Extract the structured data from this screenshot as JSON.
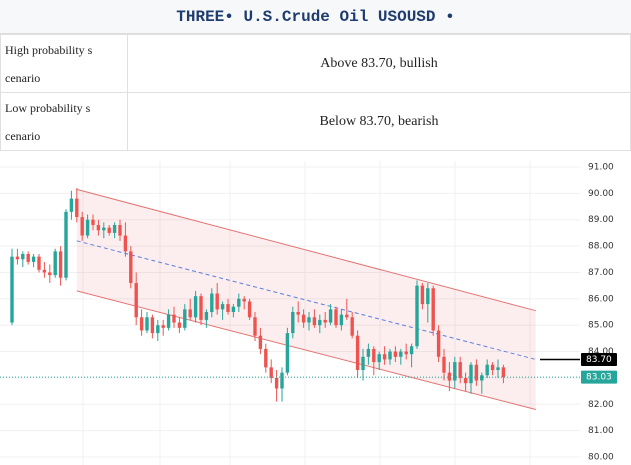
{
  "header": {
    "title": "THREE• U.S.Crude Oil USOUSD •"
  },
  "table": {
    "rows": [
      [
        "High probability s cenario",
        "Above 83.70, bullish"
      ],
      [
        "Low probability s cenario",
        "Below 83.70, bearish"
      ]
    ]
  },
  "chart_data": {
    "type": "candlestick",
    "up_color": "#26a69a",
    "down_color": "#ef5350",
    "ylim": [
      80,
      91
    ],
    "yticks": [
      {
        "value": 80,
        "label": "80.00"
      },
      {
        "value": 81,
        "label": "81.00"
      },
      {
        "value": 82,
        "label": "82.00"
      },
      {
        "value": 83,
        "label": "83.00"
      },
      {
        "value": 84,
        "label": "84.00"
      },
      {
        "value": 85,
        "label": "85.00"
      },
      {
        "value": 86,
        "label": "86.00"
      },
      {
        "value": 87,
        "label": "87.00"
      },
      {
        "value": 88,
        "label": "88.00"
      },
      {
        "value": 89,
        "label": "89.00"
      },
      {
        "value": 90,
        "label": "90.00"
      },
      {
        "value": 91,
        "label": "91.00"
      }
    ],
    "ohlc": [
      [
        85.1,
        87.9,
        85.0,
        87.6
      ],
      [
        87.6,
        87.9,
        87.3,
        87.5
      ],
      [
        87.5,
        87.8,
        87.2,
        87.7
      ],
      [
        87.7,
        87.8,
        87.3,
        87.4
      ],
      [
        87.4,
        87.7,
        87.2,
        87.6
      ],
      [
        87.6,
        87.7,
        87.0,
        87.1
      ],
      [
        87.1,
        87.4,
        86.8,
        87.0
      ],
      [
        87.0,
        87.3,
        86.6,
        86.9
      ],
      [
        86.9,
        87.9,
        86.8,
        87.8
      ],
      [
        87.8,
        88.0,
        86.5,
        86.8
      ],
      [
        86.8,
        89.4,
        86.7,
        89.3
      ],
      [
        89.3,
        90.1,
        89.0,
        89.8
      ],
      [
        89.8,
        90.2,
        88.9,
        89.1
      ],
      [
        89.1,
        89.3,
        88.2,
        88.4
      ],
      [
        88.4,
        89.2,
        88.3,
        89.0
      ],
      [
        89.0,
        89.2,
        88.6,
        88.8
      ],
      [
        88.8,
        89.0,
        88.4,
        88.6
      ],
      [
        88.6,
        88.9,
        88.3,
        88.7
      ],
      [
        88.7,
        88.8,
        88.4,
        88.5
      ],
      [
        88.5,
        88.9,
        88.3,
        88.8
      ],
      [
        88.8,
        89.0,
        88.2,
        88.4
      ],
      [
        88.4,
        88.9,
        87.6,
        87.8
      ],
      [
        87.8,
        88.0,
        86.4,
        86.6
      ],
      [
        86.6,
        87.0,
        85.0,
        85.3
      ],
      [
        85.3,
        85.6,
        84.6,
        84.8
      ],
      [
        84.8,
        85.5,
        84.7,
        85.3
      ],
      [
        85.3,
        85.4,
        84.5,
        84.7
      ],
      [
        84.7,
        85.2,
        84.4,
        85.0
      ],
      [
        85.0,
        85.2,
        84.6,
        84.9
      ],
      [
        84.9,
        85.6,
        84.8,
        85.4
      ],
      [
        85.4,
        85.7,
        84.9,
        85.1
      ],
      [
        85.1,
        85.3,
        84.7,
        84.9
      ],
      [
        84.9,
        85.8,
        84.8,
        85.6
      ],
      [
        85.6,
        86.0,
        85.2,
        85.3
      ],
      [
        85.3,
        86.3,
        85.1,
        86.1
      ],
      [
        86.1,
        86.2,
        85.0,
        85.2
      ],
      [
        85.2,
        85.6,
        84.9,
        85.5
      ],
      [
        85.5,
        86.4,
        85.3,
        86.2
      ],
      [
        86.2,
        86.6,
        85.4,
        85.6
      ],
      [
        85.6,
        85.9,
        85.2,
        85.8
      ],
      [
        85.8,
        86.0,
        85.4,
        85.5
      ],
      [
        85.5,
        85.8,
        85.3,
        85.7
      ],
      [
        85.7,
        86.2,
        85.5,
        86.0
      ],
      [
        86.0,
        86.1,
        85.6,
        85.9
      ],
      [
        85.9,
        86.0,
        85.2,
        85.3
      ],
      [
        85.3,
        85.5,
        84.4,
        84.6
      ],
      [
        84.6,
        84.9,
        83.9,
        84.1
      ],
      [
        84.1,
        84.3,
        83.2,
        83.4
      ],
      [
        83.4,
        83.7,
        82.8,
        83.0
      ],
      [
        83.0,
        83.3,
        82.1,
        82.6
      ],
      [
        82.6,
        83.4,
        82.1,
        83.2
      ],
      [
        83.2,
        84.9,
        83.1,
        84.7
      ],
      [
        84.7,
        85.7,
        84.5,
        85.5
      ],
      [
        85.5,
        85.9,
        85.1,
        85.4
      ],
      [
        85.4,
        85.6,
        84.9,
        85.1
      ],
      [
        85.1,
        85.5,
        84.8,
        85.3
      ],
      [
        85.3,
        85.6,
        84.9,
        85.0
      ],
      [
        85.0,
        85.4,
        84.7,
        85.2
      ],
      [
        85.2,
        85.5,
        84.9,
        85.1
      ],
      [
        85.1,
        85.8,
        85.0,
        85.6
      ],
      [
        85.6,
        85.7,
        84.9,
        85.0
      ],
      [
        85.0,
        85.6,
        84.8,
        85.4
      ],
      [
        85.4,
        86.0,
        85.2,
        85.3
      ],
      [
        85.3,
        85.5,
        84.5,
        84.6
      ],
      [
        84.6,
        84.8,
        83.0,
        83.3
      ],
      [
        83.3,
        84.1,
        82.9,
        83.8
      ],
      [
        83.8,
        84.3,
        83.5,
        84.1
      ],
      [
        84.1,
        84.2,
        83.1,
        83.6
      ],
      [
        83.6,
        84.0,
        83.3,
        83.9
      ],
      [
        83.9,
        84.2,
        83.5,
        83.7
      ],
      [
        83.7,
        84.1,
        83.5,
        84.0
      ],
      [
        84.0,
        84.2,
        83.6,
        83.8
      ],
      [
        83.8,
        84.1,
        83.5,
        84.0
      ],
      [
        84.0,
        84.3,
        83.7,
        83.9
      ],
      [
        83.9,
        84.3,
        83.4,
        84.2
      ],
      [
        84.2,
        86.7,
        84.1,
        86.5
      ],
      [
        86.5,
        86.6,
        85.6,
        85.8
      ],
      [
        85.8,
        86.6,
        85.1,
        86.4
      ],
      [
        86.4,
        86.5,
        84.6,
        84.8
      ],
      [
        84.8,
        85.0,
        83.6,
        83.8
      ],
      [
        83.8,
        84.1,
        82.9,
        83.2
      ],
      [
        83.2,
        83.6,
        82.5,
        82.9
      ],
      [
        82.9,
        83.8,
        82.6,
        83.6
      ],
      [
        83.6,
        83.8,
        82.8,
        83.0
      ],
      [
        83.0,
        83.2,
        82.5,
        82.8
      ],
      [
        82.8,
        83.6,
        82.4,
        83.5
      ],
      [
        83.5,
        83.7,
        82.7,
        82.9
      ],
      [
        82.9,
        83.2,
        82.4,
        83.1
      ],
      [
        83.1,
        83.7,
        83.0,
        83.5
      ],
      [
        83.5,
        83.6,
        83.1,
        83.3
      ],
      [
        83.3,
        83.7,
        83.0,
        83.4
      ],
      [
        83.4,
        83.5,
        82.8,
        83.03
      ]
    ],
    "channel_x": [
      12,
      97
    ],
    "channel_upper": [
      90.15,
      85.55
    ],
    "channel_middle": [
      88.2,
      83.7
    ],
    "channel_lower": [
      86.3,
      81.8
    ],
    "channel_color": "#e57373",
    "price_lines": [
      {
        "value": 83.7,
        "label": "83.70",
        "color": "#000000"
      },
      {
        "value": 83.03,
        "label": "83.03",
        "color": "#26a69a"
      }
    ]
  }
}
